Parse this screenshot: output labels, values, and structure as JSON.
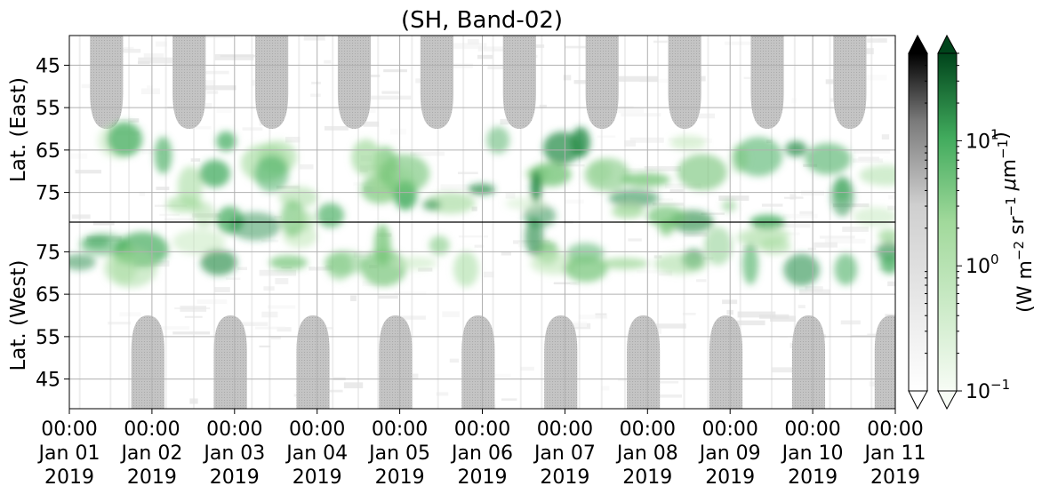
{
  "chart_data": {
    "type": "heatmap",
    "title": "(SH, Band-02)",
    "ylabel_top": "Lat. (East)",
    "ylabel_bottom": "Lat. (West)",
    "x_ticks": [
      {
        "time": "00:00",
        "date": "Jan 01",
        "year": "2019"
      },
      {
        "time": "00:00",
        "date": "Jan 02",
        "year": "2019"
      },
      {
        "time": "00:00",
        "date": "Jan 03",
        "year": "2019"
      },
      {
        "time": "00:00",
        "date": "Jan 04",
        "year": "2019"
      },
      {
        "time": "00:00",
        "date": "Jan 05",
        "year": "2019"
      },
      {
        "time": "00:00",
        "date": "Jan 06",
        "year": "2019"
      },
      {
        "time": "00:00",
        "date": "Jan 07",
        "year": "2019"
      },
      {
        "time": "00:00",
        "date": "Jan 08",
        "year": "2019"
      },
      {
        "time": "00:00",
        "date": "Jan 09",
        "year": "2019"
      },
      {
        "time": "00:00",
        "date": "Jan 10",
        "year": "2019"
      },
      {
        "time": "00:00",
        "date": "Jan 11",
        "year": "2019"
      }
    ],
    "xlim": [
      "2019-01-01 00:00",
      "2019-01-11 00:00"
    ],
    "y_ticks_top": [
      "45",
      "55",
      "65",
      "75"
    ],
    "y_ticks_bottom": [
      "75",
      "65",
      "55",
      "45"
    ],
    "top_lat_values": [
      45,
      55,
      65,
      75
    ],
    "top_lat_range": [
      38,
      82
    ],
    "bottom_lat_values": [
      75,
      65,
      55,
      45
    ],
    "bottom_lat_range": [
      82,
      38
    ],
    "grid": true,
    "colorbar_label": "(W m$^{-2}$ sr$^{-1}$ $\\mu$m$^{-1}$)",
    "colorbar_ticks": [
      {
        "base": "10",
        "exp": "1",
        "value": 10
      },
      {
        "base": "10",
        "exp": "0",
        "value": 1
      },
      {
        "base": "10",
        "exp": "−1",
        "value": 0.1
      }
    ],
    "colorbar_scale": "log",
    "colorbar_range": [
      0.1,
      50
    ],
    "colormaps": [
      "gray",
      "green"
    ],
    "colors": {
      "gray_max": "#000000",
      "green_max": "#00441b",
      "mask": "#bdbdbd",
      "grid": "#b0b0b0"
    },
    "masked_regions": {
      "top_centers_day": [
        0.45,
        1.45,
        2.45,
        3.45,
        4.45,
        5.45,
        6.45,
        7.45,
        8.45,
        9.45
      ],
      "bottom_centers_day": [
        0.95,
        1.95,
        2.95,
        3.95,
        4.95,
        5.95,
        6.95,
        7.95,
        8.95,
        9.95
      ],
      "extent_lat": 60
    }
  }
}
